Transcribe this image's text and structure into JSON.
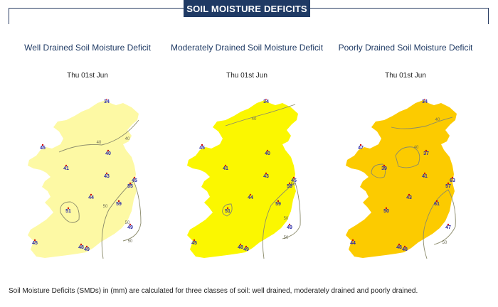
{
  "header": {
    "title": "SOIL MOISTURE DEFICITS"
  },
  "panels": [
    {
      "title": "Well Drained Soil Moisture Deficit",
      "date": "Thu 01st Jun",
      "fill": "#fdf9a4",
      "contour_labels": [
        "40",
        "40",
        "50",
        "50",
        "50"
      ],
      "stations": [
        {
          "label": "34",
          "loc": "malin-head"
        },
        {
          "label": "45",
          "loc": "belmullet"
        },
        {
          "label": "40",
          "loc": "clones"
        },
        {
          "label": "41",
          "loc": "claremorris"
        },
        {
          "label": "43",
          "loc": "mullingar"
        },
        {
          "label": "45",
          "loc": "dublin-airport"
        },
        {
          "label": "55",
          "loc": "casement"
        },
        {
          "label": "44",
          "loc": "gurteen"
        },
        {
          "label": "59",
          "loc": "oak-park"
        },
        {
          "label": "51",
          "loc": "shannon"
        },
        {
          "label": "49",
          "loc": "johnstown"
        },
        {
          "label": "45",
          "loc": "valentia"
        },
        {
          "label": "48",
          "loc": "cork-airport"
        },
        {
          "label": "49",
          "loc": "roches-point"
        }
      ]
    },
    {
      "title": "Moderately Drained Soil Moisture Deficit",
      "date": "Thu 01st Jun",
      "fill": "#fbf700",
      "contour_labels": [
        "40",
        "50",
        "50",
        "50"
      ],
      "stations": [
        {
          "label": "34",
          "loc": "malin-head"
        },
        {
          "label": "45",
          "loc": "belmullet"
        },
        {
          "label": "40",
          "loc": "clones"
        },
        {
          "label": "41",
          "loc": "claremorris"
        },
        {
          "label": "43",
          "loc": "mullingar"
        },
        {
          "label": "45",
          "loc": "dublin-airport"
        },
        {
          "label": "55",
          "loc": "casement"
        },
        {
          "label": "44",
          "loc": "gurteen"
        },
        {
          "label": "59",
          "loc": "oak-park"
        },
        {
          "label": "51",
          "loc": "shannon"
        },
        {
          "label": "49",
          "loc": "johnstown"
        },
        {
          "label": "45",
          "loc": "valentia"
        },
        {
          "label": "48",
          "loc": "cork-airport"
        },
        {
          "label": "49",
          "loc": "roches-point"
        }
      ]
    },
    {
      "title": "Poorly Drained Soil Moisture Deficit",
      "date": "Thu 01st Jun",
      "fill": "#fccb00",
      "contour_labels": [
        "40",
        "40",
        "50",
        "50"
      ],
      "stations": [
        {
          "label": "34",
          "loc": "malin-head"
        },
        {
          "label": "47",
          "loc": "belmullet"
        },
        {
          "label": "37",
          "loc": "clones"
        },
        {
          "label": "39",
          "loc": "claremorris"
        },
        {
          "label": "41",
          "loc": "mullingar"
        },
        {
          "label": "63",
          "loc": "dublin-airport"
        },
        {
          "label": "57",
          "loc": "casement"
        },
        {
          "label": "43",
          "loc": "gurteen"
        },
        {
          "label": "61",
          "loc": "oak-park"
        },
        {
          "label": "50",
          "loc": "shannon"
        },
        {
          "label": "47",
          "loc": "johnstown"
        },
        {
          "label": "44",
          "loc": "valentia"
        },
        {
          "label": "48",
          "loc": "cork-airport"
        },
        {
          "label": "48",
          "loc": "roches-point"
        }
      ]
    }
  ],
  "footer": {
    "note": "Soil Moisture Deficits (SMDs) in (mm) are calculated for three classes of soil: well drained, moderately drained and poorly drained."
  }
}
